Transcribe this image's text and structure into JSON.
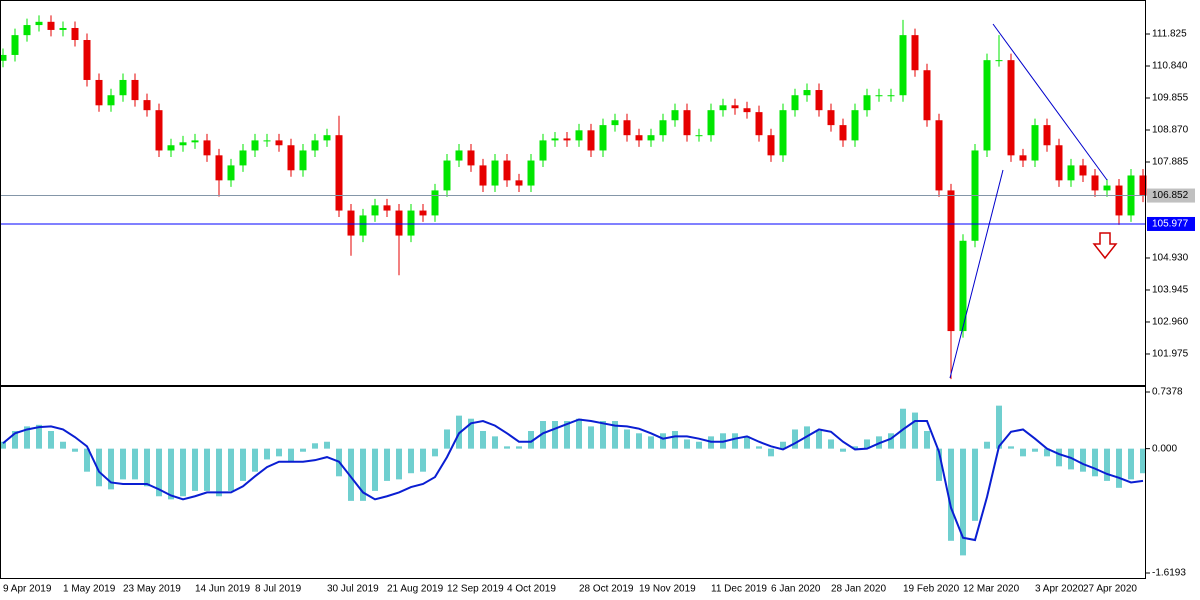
{
  "chart_data": [
    {
      "type": "candlestick",
      "categories": [
        "9 Apr 2019",
        null,
        null,
        null,
        null,
        "1 May 2019",
        null,
        null,
        null,
        null,
        "23 May 2019",
        null,
        null,
        null,
        null,
        null,
        "14 Jun 2019",
        null,
        null,
        null,
        null,
        "8 Jul 2019",
        null,
        null,
        null,
        null,
        null,
        "30 Jul 2019",
        null,
        null,
        null,
        null,
        "21 Aug 2019",
        null,
        null,
        null,
        null,
        "12 Sep 2019",
        null,
        null,
        null,
        null,
        "4 Oct 2019",
        null,
        null,
        null,
        null,
        null,
        "28 Oct 2019",
        null,
        null,
        null,
        null,
        "19 Nov 2019",
        null,
        null,
        null,
        null,
        null,
        "11 Dec 2019",
        null,
        null,
        null,
        null,
        "6 Jan 2020",
        null,
        null,
        null,
        null,
        "28 Jan 2020",
        null,
        null,
        null,
        null,
        null,
        "19 Feb 2020",
        null,
        null,
        null,
        null,
        "12 Mar 2020",
        null,
        null,
        null,
        null,
        null,
        "3 Apr 2020",
        null,
        null,
        null,
        "27 Apr 2020",
        null,
        null,
        null,
        null,
        null
      ],
      "open": [
        111.0,
        111.18,
        111.79,
        112.1,
        112.2,
        111.95,
        112.01,
        111.64,
        110.41,
        109.63,
        109.94,
        110.41,
        109.79,
        109.48,
        108.24,
        108.4,
        108.49,
        108.55,
        108.09,
        107.32,
        107.78,
        108.24,
        108.55,
        108.55,
        108.4,
        107.63,
        108.24,
        108.55,
        108.71,
        106.39,
        105.62,
        106.24,
        106.55,
        106.39,
        105.62,
        106.39,
        106.24,
        107.01,
        107.93,
        108.24,
        107.78,
        107.16,
        107.93,
        107.32,
        107.16,
        107.93,
        108.55,
        108.61,
        108.55,
        108.86,
        108.24,
        109.02,
        109.17,
        108.71,
        108.55,
        108.71,
        109.17,
        109.48,
        108.71,
        108.71,
        109.48,
        109.63,
        109.54,
        109.42,
        108.71,
        108.09,
        109.48,
        109.94,
        110.1,
        109.48,
        109.02,
        108.55,
        109.48,
        109.94,
        109.94,
        109.94,
        111.79,
        110.71,
        109.17,
        107.01,
        102.68,
        105.46,
        108.24,
        111.02,
        111.02,
        108.09,
        107.93,
        109.02,
        108.4,
        107.32,
        107.78,
        107.47,
        107.01,
        107.16,
        106.24,
        107.47
      ],
      "high": [
        111.38,
        111.99,
        112.3,
        112.4,
        112.4,
        112.21,
        112.21,
        111.84,
        110.61,
        110.14,
        110.61,
        110.61,
        109.99,
        109.68,
        108.6,
        108.69,
        108.75,
        108.75,
        108.29,
        107.98,
        108.44,
        108.75,
        108.75,
        108.75,
        108.6,
        108.44,
        108.75,
        108.91,
        109.31,
        106.59,
        106.44,
        106.75,
        106.75,
        106.59,
        106.59,
        106.59,
        107.21,
        108.13,
        108.44,
        108.44,
        107.98,
        108.13,
        108.13,
        107.52,
        108.13,
        108.75,
        108.81,
        108.81,
        109.06,
        109.06,
        109.22,
        109.37,
        109.37,
        108.91,
        108.91,
        109.37,
        109.68,
        109.68,
        108.91,
        109.68,
        109.83,
        109.83,
        109.74,
        109.62,
        108.91,
        109.68,
        110.14,
        110.3,
        110.3,
        109.68,
        109.22,
        109.68,
        110.14,
        110.14,
        110.14,
        112.26,
        111.99,
        110.91,
        109.37,
        107.21,
        105.66,
        108.44,
        111.22,
        111.79,
        111.22,
        108.29,
        109.22,
        109.22,
        108.6,
        107.98,
        107.98,
        107.67,
        107.36,
        107.36,
        107.67,
        107.67
      ],
      "low": [
        110.8,
        110.98,
        111.59,
        111.9,
        111.75,
        111.75,
        111.44,
        110.21,
        109.43,
        109.43,
        109.74,
        109.59,
        109.28,
        108.04,
        108.04,
        108.2,
        108.29,
        107.89,
        106.82,
        107.12,
        107.58,
        108.04,
        108.35,
        108.2,
        107.43,
        107.43,
        108.04,
        108.35,
        106.19,
        105.0,
        105.42,
        106.04,
        106.19,
        104.4,
        105.42,
        106.04,
        106.04,
        106.81,
        107.73,
        107.58,
        106.96,
        106.96,
        107.12,
        106.96,
        106.96,
        107.73,
        108.35,
        108.35,
        108.35,
        108.04,
        108.04,
        108.82,
        108.51,
        108.35,
        108.35,
        108.51,
        108.97,
        108.51,
        108.51,
        108.51,
        109.28,
        109.34,
        109.22,
        108.51,
        107.89,
        107.89,
        109.28,
        109.74,
        109.28,
        108.82,
        108.35,
        108.35,
        109.28,
        109.74,
        109.74,
        109.74,
        110.51,
        108.97,
        106.81,
        101.2,
        102.48,
        105.26,
        108.04,
        110.82,
        107.89,
        107.73,
        107.73,
        108.2,
        107.12,
        107.12,
        107.27,
        106.81,
        106.81,
        105.95,
        106.04,
        106.65
      ],
      "close": [
        111.18,
        111.79,
        112.1,
        112.2,
        111.95,
        112.01,
        111.64,
        110.41,
        109.63,
        109.94,
        110.41,
        109.79,
        109.48,
        108.24,
        108.4,
        108.49,
        108.55,
        108.09,
        107.32,
        107.78,
        108.24,
        108.55,
        108.55,
        108.4,
        107.63,
        108.24,
        108.55,
        108.71,
        106.39,
        105.62,
        106.24,
        106.55,
        106.39,
        105.62,
        106.39,
        106.24,
        107.01,
        107.93,
        108.24,
        107.78,
        107.16,
        107.93,
        107.32,
        107.16,
        107.93,
        108.55,
        108.61,
        108.55,
        108.86,
        108.24,
        109.02,
        109.17,
        108.71,
        108.55,
        108.71,
        109.17,
        109.48,
        108.71,
        108.71,
        109.48,
        109.63,
        109.54,
        109.42,
        108.71,
        108.09,
        109.48,
        109.94,
        110.1,
        109.48,
        109.02,
        108.55,
        109.48,
        109.94,
        109.94,
        109.94,
        111.79,
        110.71,
        109.17,
        107.01,
        102.68,
        105.46,
        108.24,
        111.02,
        111.02,
        108.09,
        107.93,
        109.02,
        108.4,
        107.32,
        107.78,
        107.47,
        107.01,
        107.16,
        106.24,
        107.47,
        106.85
      ],
      "up_color": "#00e600",
      "down_color": "#e60000",
      "ylim": [
        101.02,
        112.81
      ],
      "yticks": [
        {
          "value": 111.825,
          "label": "111.825"
        },
        {
          "value": 110.84,
          "label": "110.840"
        },
        {
          "value": 109.855,
          "label": "109.855"
        },
        {
          "value": 108.87,
          "label": "108.870"
        },
        {
          "value": 107.885,
          "label": "107.885"
        },
        {
          "value": 104.93,
          "label": "104.930"
        },
        {
          "value": 103.945,
          "label": "103.945"
        },
        {
          "value": 102.96,
          "label": "102.960"
        },
        {
          "value": 101.975,
          "label": "101.975"
        }
      ],
      "hlines": [
        {
          "value": 106.852,
          "color": "#8496a8",
          "label_fill": "#c0c0c0",
          "label_color": "#000000"
        },
        {
          "value": 105.977,
          "color": "#0000ff",
          "label_fill": "#0000ff",
          "label_color": "#ffffff"
        }
      ]
    },
    {
      "type": "macd",
      "series": [
        {
          "type": "bar",
          "color": "#6fcfcf",
          "values": [
            0.09,
            0.23,
            0.29,
            0.31,
            0.23,
            0.09,
            -0.04,
            -0.3,
            -0.49,
            -0.53,
            -0.4,
            -0.4,
            -0.49,
            -0.62,
            -0.66,
            -0.62,
            -0.55,
            -0.55,
            -0.62,
            -0.55,
            -0.42,
            -0.3,
            -0.14,
            -0.1,
            -0.17,
            -0.04,
            0.07,
            0.09,
            -0.36,
            -0.68,
            -0.68,
            -0.55,
            -0.42,
            -0.4,
            -0.32,
            -0.3,
            -0.1,
            0.25,
            0.43,
            0.39,
            0.23,
            0.16,
            0.03,
            0.03,
            0.23,
            0.36,
            0.36,
            0.36,
            0.39,
            0.29,
            0.36,
            0.36,
            0.25,
            0.2,
            0.16,
            0.2,
            0.23,
            0.12,
            0.09,
            0.16,
            0.2,
            0.2,
            0.16,
            0.03,
            -0.1,
            0.09,
            0.25,
            0.29,
            0.23,
            0.12,
            -0.04,
            0.03,
            0.12,
            0.16,
            0.2,
            0.52,
            0.47,
            0.23,
            -0.42,
            -1.2,
            -1.39,
            -0.94,
            0.09,
            0.56,
            0.03,
            -0.1,
            -0.04,
            -0.1,
            -0.23,
            -0.27,
            -0.3,
            -0.36,
            -0.42,
            -0.51,
            -0.4,
            -0.32
          ]
        },
        {
          "type": "line",
          "color": "#0a1ed2",
          "values": [
            0.07,
            0.2,
            0.25,
            0.28,
            0.29,
            0.25,
            0.15,
            0.03,
            -0.3,
            -0.44,
            -0.46,
            -0.46,
            -0.46,
            -0.53,
            -0.61,
            -0.66,
            -0.62,
            -0.57,
            -0.57,
            -0.57,
            -0.49,
            -0.36,
            -0.24,
            -0.17,
            -0.17,
            -0.17,
            -0.15,
            -0.11,
            -0.17,
            -0.37,
            -0.57,
            -0.66,
            -0.62,
            -0.57,
            -0.5,
            -0.46,
            -0.37,
            -0.11,
            0.2,
            0.33,
            0.36,
            0.3,
            0.2,
            0.09,
            0.09,
            0.2,
            0.26,
            0.32,
            0.38,
            0.36,
            0.33,
            0.3,
            0.29,
            0.26,
            0.2,
            0.13,
            0.16,
            0.16,
            0.13,
            0.09,
            0.09,
            0.13,
            0.16,
            0.09,
            0.03,
            -0.01,
            0.07,
            0.16,
            0.25,
            0.22,
            0.09,
            -0.01,
            0.0,
            0.07,
            0.13,
            0.25,
            0.36,
            0.36,
            -0.04,
            -0.77,
            -1.16,
            -1.19,
            -0.63,
            0.03,
            0.22,
            0.25,
            0.13,
            0.0,
            -0.07,
            -0.12,
            -0.2,
            -0.26,
            -0.33,
            -0.38,
            -0.44,
            -0.42
          ]
        }
      ],
      "ylim": [
        -1.6193,
        0.7378
      ],
      "yticks": [
        0.7378,
        {
          "value": 0,
          "label": "0.000"
        },
        -1.6193
      ]
    }
  ]
}
